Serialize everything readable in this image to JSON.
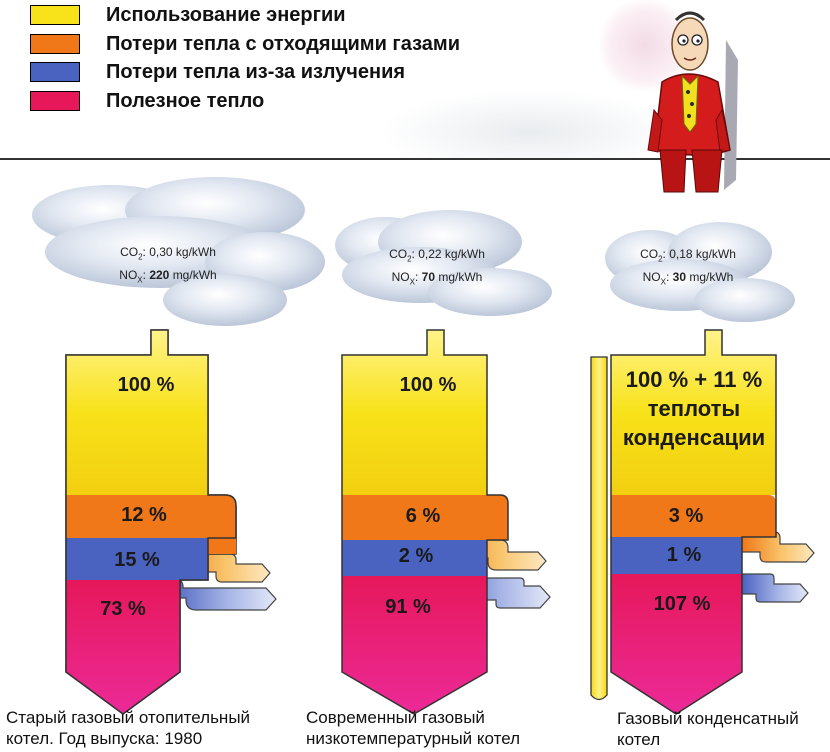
{
  "legend": [
    {
      "label": "Использование энергии",
      "color": "#f8e21a"
    },
    {
      "label": "Потери тепла с отходящими газами",
      "color": "#f07818"
    },
    {
      "label": "Потери тепла из-за излучения",
      "color": "#4a62c0"
    },
    {
      "label": "Полезное тепло",
      "color": "#e6185a"
    }
  ],
  "boilers": [
    {
      "co2_value": "0,30 kg/kWh",
      "nox_value": "220",
      "nox_unit": "mg/kWh",
      "energy_label": "100 %",
      "flue_gas_loss": "12 %",
      "radiation_loss": "15 %",
      "useful_heat": "73 %",
      "caption_line1": "Старый газовый отопительный",
      "caption_line2": "котел. Год выпуска: 1980"
    },
    {
      "co2_value": "0,22 kg/kWh",
      "nox_value": "70",
      "nox_unit": "mg/kWh",
      "energy_label": "100 %",
      "flue_gas_loss": "6 %",
      "radiation_loss": "2 %",
      "useful_heat": "91 %",
      "caption_line1": "Современный газовый",
      "caption_line2": "низкотемпературный котел"
    },
    {
      "co2_value": "0,18 kg/kWh",
      "nox_value": "30",
      "nox_unit": "mg/kWh",
      "energy_label_line1": "100 % + 11 %",
      "energy_label_line2": "теплоты",
      "energy_label_line3": "конденсации",
      "flue_gas_loss": "3 %",
      "radiation_loss": "1 %",
      "useful_heat": "107 %",
      "caption_line1": "Газовый конденсатный",
      "caption_line2": "котел"
    }
  ],
  "emission_labels": {
    "co2": "CO",
    "nox": "NO",
    "co2_sub": "2",
    "nox_sub": "X"
  }
}
